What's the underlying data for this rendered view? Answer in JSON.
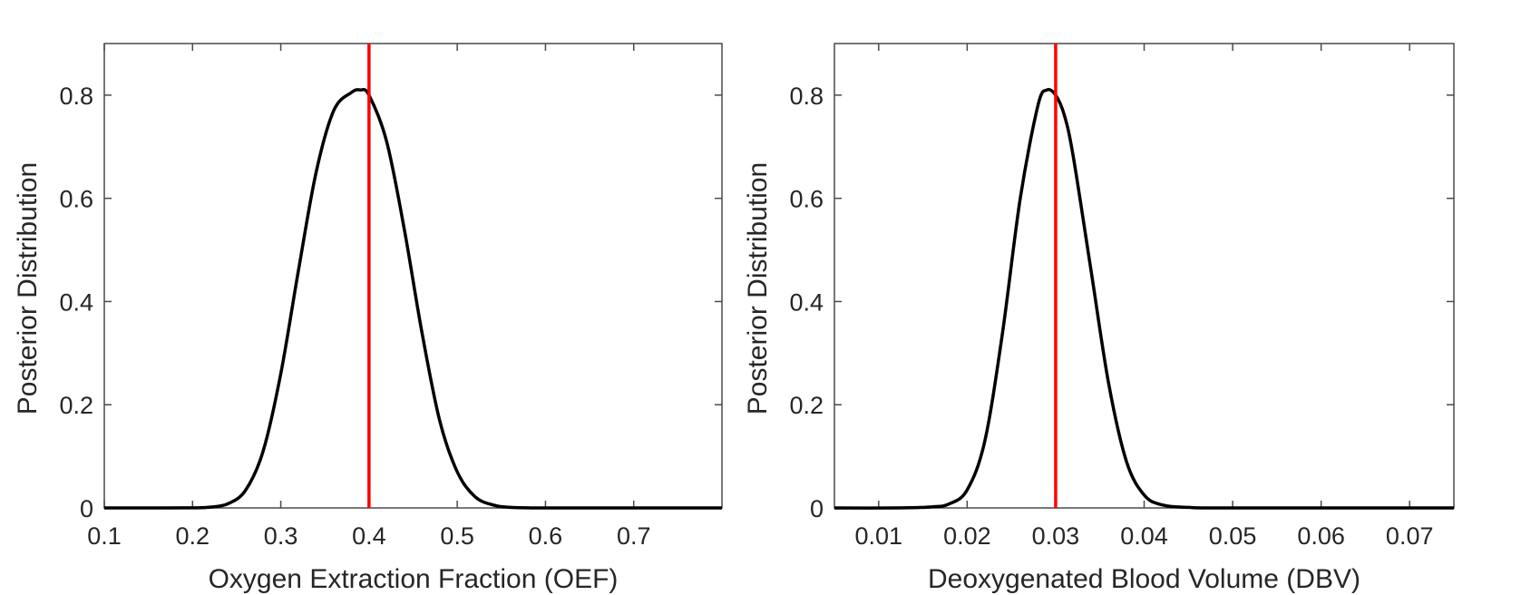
{
  "chart_data": [
    {
      "type": "line",
      "title": "",
      "xlabel": "Oxygen Extraction Fraction (OEF)",
      "ylabel": "Posterior Distribution",
      "xlim": [
        0.1,
        0.8
      ],
      "ylim": [
        0,
        0.9
      ],
      "xticks": [
        0.1,
        0.2,
        0.3,
        0.4,
        0.5,
        0.6,
        0.7
      ],
      "xtick_labels": [
        "0.1",
        "0.2",
        "0.3",
        "0.4",
        "0.5",
        "0.6",
        "0.7"
      ],
      "yticks": [
        0,
        0.2,
        0.4,
        0.6,
        0.8
      ],
      "ytick_labels": [
        "0",
        "0.2",
        "0.4",
        "0.6",
        "0.8"
      ],
      "series": [
        {
          "name": "posterior",
          "color": "#000000",
          "x": [
            0.1,
            0.15,
            0.2,
            0.22,
            0.24,
            0.26,
            0.28,
            0.3,
            0.32,
            0.34,
            0.36,
            0.38,
            0.39,
            0.4,
            0.42,
            0.44,
            0.46,
            0.48,
            0.5,
            0.52,
            0.54,
            0.56,
            0.6,
            0.7,
            0.8
          ],
          "y": [
            0,
            0,
            0.0002,
            0.0015,
            0.008,
            0.034,
            0.11,
            0.26,
            0.46,
            0.65,
            0.77,
            0.805,
            0.81,
            0.8,
            0.71,
            0.54,
            0.34,
            0.17,
            0.07,
            0.022,
            0.006,
            0.0012,
            0,
            0,
            0
          ]
        }
      ],
      "reference_line": {
        "x": 0.4,
        "color": "#ff0000"
      }
    },
    {
      "type": "line",
      "title": "",
      "xlabel": "Deoxygenated Blood Volume (DBV)",
      "ylabel": "Posterior Distribution",
      "xlim": [
        0.005,
        0.075
      ],
      "ylim": [
        0,
        0.9
      ],
      "xticks": [
        0.01,
        0.02,
        0.03,
        0.04,
        0.05,
        0.06,
        0.07
      ],
      "xtick_labels": [
        "0.01",
        "0.02",
        "0.03",
        "0.04",
        "0.05",
        "0.06",
        "0.07"
      ],
      "yticks": [
        0,
        0.2,
        0.4,
        0.6,
        0.8
      ],
      "ytick_labels": [
        "0",
        "0.2",
        "0.4",
        "0.6",
        "0.8"
      ],
      "series": [
        {
          "name": "posterior",
          "color": "#000000",
          "x": [
            0.005,
            0.012,
            0.016,
            0.018,
            0.02,
            0.022,
            0.024,
            0.026,
            0.028,
            0.029,
            0.03,
            0.031,
            0.032,
            0.034,
            0.036,
            0.038,
            0.04,
            0.042,
            0.045,
            0.05,
            0.075
          ],
          "y": [
            0,
            0,
            0.002,
            0.008,
            0.035,
            0.13,
            0.34,
            0.6,
            0.78,
            0.81,
            0.8,
            0.76,
            0.68,
            0.46,
            0.24,
            0.09,
            0.025,
            0.006,
            0.001,
            0,
            0
          ]
        }
      ],
      "reference_line": {
        "x": 0.03,
        "color": "#ff0000"
      }
    }
  ]
}
